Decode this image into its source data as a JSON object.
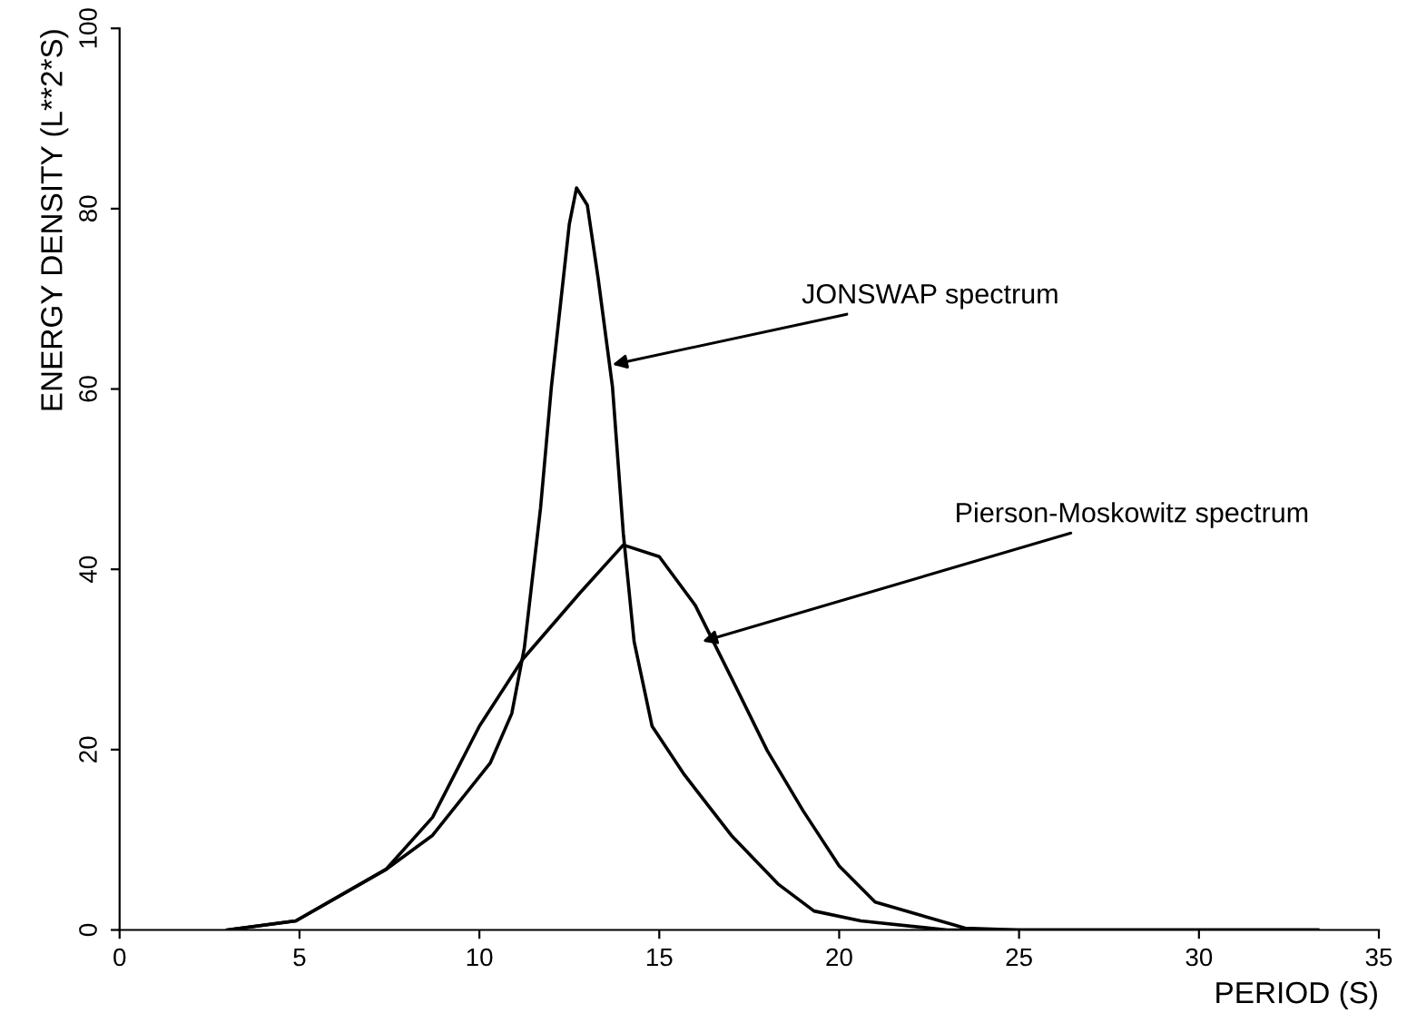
{
  "chart_data": {
    "type": "line",
    "xlabel": "PERIOD (S)",
    "ylabel": "ENERGY DENSITY (L**2*S)",
    "xlim": [
      0,
      35
    ],
    "xticks": [
      0,
      5,
      10,
      15,
      20,
      25,
      30,
      35
    ],
    "ylim": [
      0,
      100
    ],
    "yticks": [
      0,
      20,
      40,
      60,
      80,
      100
    ],
    "grid": false,
    "legend": false,
    "marker": "none",
    "line_style": "solid",
    "series": [
      {
        "color": "#000000",
        "x": [
          3,
          4.9,
          7.4,
          8.7,
          9.5,
          10.3,
          10.9,
          11.25,
          11.7,
          12.0,
          12.5,
          12.7,
          13.0,
          13.3,
          13.7,
          14.0,
          14.3,
          14.8,
          15.7,
          17.0,
          18.3,
          19.3,
          20.6,
          23,
          33.3
        ],
        "values": [
          0,
          1,
          6.7,
          10.5,
          14.5,
          18.5,
          24,
          31.3,
          46.8,
          60.2,
          78.3,
          82.3,
          80.4,
          72.3,
          60.2,
          44,
          32,
          22.6,
          17.2,
          10.5,
          5.1,
          2.1,
          1,
          0,
          0
        ]
      },
      {
        "color": "#000000",
        "x": [
          3,
          4.9,
          7.4,
          8.7,
          10.0,
          11.2,
          12.8,
          14.0,
          15.0,
          16.0,
          17.0,
          18.0,
          19.0,
          20.0,
          21.0,
          23.5,
          25,
          33.3
        ],
        "values": [
          0,
          1,
          6.7,
          12.5,
          22.6,
          30,
          37.4,
          42.7,
          41.4,
          36,
          28,
          19.9,
          13.2,
          7.1,
          3.1,
          0.2,
          0,
          0
        ]
      }
    ],
    "annotations": [
      {
        "text": "JONSWAP spectrum",
        "x": 13.7,
        "y": 62.7
      },
      {
        "text": "Pierson-Moskowitz spectrum",
        "x": 16.2,
        "y": 32
      }
    ]
  }
}
